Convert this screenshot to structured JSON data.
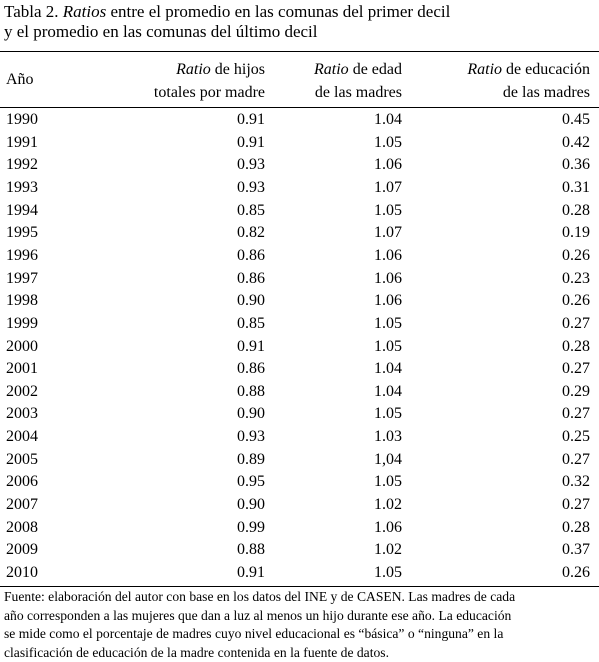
{
  "title": {
    "label": "Tabla 2.",
    "italic": "Ratios",
    "rest": "entre el promedio en las comunas del primer decil",
    "line2": "y el promedio en las comunas del último decil"
  },
  "table": {
    "headers": [
      {
        "line1": "Año"
      },
      {
        "italic": "Ratio",
        "line1": "de hijos",
        "line2": "totales por madre"
      },
      {
        "italic": "Ratio",
        "line1": "de edad",
        "line2": "de las madres"
      },
      {
        "italic": "Ratio",
        "line1": "de educación",
        "line2": "de las madres"
      }
    ],
    "rows": [
      [
        "1990",
        "0.91",
        "1.04",
        "0.45"
      ],
      [
        "1991",
        "0.91",
        "1.05",
        "0.42"
      ],
      [
        "1992",
        "0.93",
        "1.06",
        "0.36"
      ],
      [
        "1993",
        "0.93",
        "1.07",
        "0.31"
      ],
      [
        "1994",
        "0.85",
        "1.05",
        "0.28"
      ],
      [
        "1995",
        "0.82",
        "1.07",
        "0.19"
      ],
      [
        "1996",
        "0.86",
        "1.06",
        "0.26"
      ],
      [
        "1997",
        "0.86",
        "1.06",
        "0.23"
      ],
      [
        "1998",
        "0.90",
        "1.06",
        "0.26"
      ],
      [
        "1999",
        "0.85",
        "1.05",
        "0.27"
      ],
      [
        "2000",
        "0.91",
        "1.05",
        "0.28"
      ],
      [
        "2001",
        "0.86",
        "1.04",
        "0.27"
      ],
      [
        "2002",
        "0.88",
        "1.04",
        "0.29"
      ],
      [
        "2003",
        "0.90",
        "1.05",
        "0.27"
      ],
      [
        "2004",
        "0.93",
        "1.03",
        "0.25"
      ],
      [
        "2005",
        "0.89",
        "1,04",
        "0.27"
      ],
      [
        "2006",
        "0.95",
        "1.05",
        "0.32"
      ],
      [
        "2007",
        "0.90",
        "1.02",
        "0.27"
      ],
      [
        "2008",
        "0.99",
        "1.06",
        "0.28"
      ],
      [
        "2009",
        "0.88",
        "1.02",
        "0.37"
      ],
      [
        "2010",
        "0.91",
        "1.05",
        "0.26"
      ]
    ]
  },
  "footnote": [
    "Fuente: elaboración del autor con base en los datos del INE y de CASEN. Las madres de cada",
    "año corresponden a las mujeres que dan a luz al menos un hijo durante ese año. La educación",
    "se mide como el porcentaje de madres cuyo nivel educacional es “básica” o “ninguna” en la",
    "clasificación de educación de la madre contenida en la fuente de datos."
  ]
}
